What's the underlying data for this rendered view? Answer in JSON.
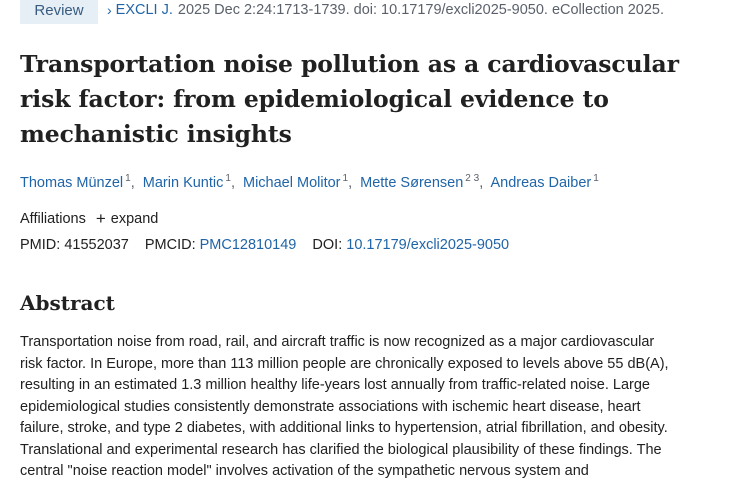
{
  "header": {
    "badge": "Review",
    "chevron": "›",
    "journal": "EXCLI J.",
    "citation": "2025 Dec 2:24:1713-1739. doi: 10.17179/excli2025-9050. eCollection 2025."
  },
  "article": {
    "title_lines": [
      "Transportation noise pollution as a cardiovascular",
      "risk factor: from epidemiological evidence to",
      "mechanistic insights"
    ]
  },
  "authors": [
    {
      "name": "Thomas Münzel",
      "sup": "1"
    },
    {
      "name": "Marin Kuntic",
      "sup": "1"
    },
    {
      "name": "Michael Molitor",
      "sup": "1"
    },
    {
      "name": "Mette Sørensen",
      "sup": "2 3"
    },
    {
      "name": "Andreas Daiber",
      "sup": "1"
    }
  ],
  "affiliations": {
    "label": "Affiliations",
    "expand_symbol": "+",
    "expand_label": "expand"
  },
  "ids": {
    "pmid_label": "PMID:",
    "pmid": "41552037",
    "pmcid_label": "PMCID:",
    "pmcid": "PMC12810149",
    "doi_label": "DOI:",
    "doi": "10.17179/excli2025-9050"
  },
  "abstract": {
    "heading": "Abstract",
    "lines": [
      "Transportation noise from road, rail, and aircraft traffic is now recognized as a major cardiovascular",
      "risk factor. In Europe, more than 113 million people are chronically exposed to levels above 55 dB(A),",
      "resulting in an estimated 1.3 million healthy life-years lost annually from traffic-related noise. Large",
      "epidemiological studies consistently demonstrate associations with ischemic heart disease, heart",
      "failure, stroke, and type 2 diabetes, with additional links to hypertension, atrial fibrillation, and obesity.",
      "Translational and experimental research has clarified the biological plausibility of these findings. The",
      "central \"noise reaction model\" involves activation of the sympathetic nervous system and"
    ]
  },
  "colors": {
    "link": "#2065a8",
    "badge_bg": "#e6eef6",
    "text": "#212121",
    "muted": "#5b616b"
  }
}
